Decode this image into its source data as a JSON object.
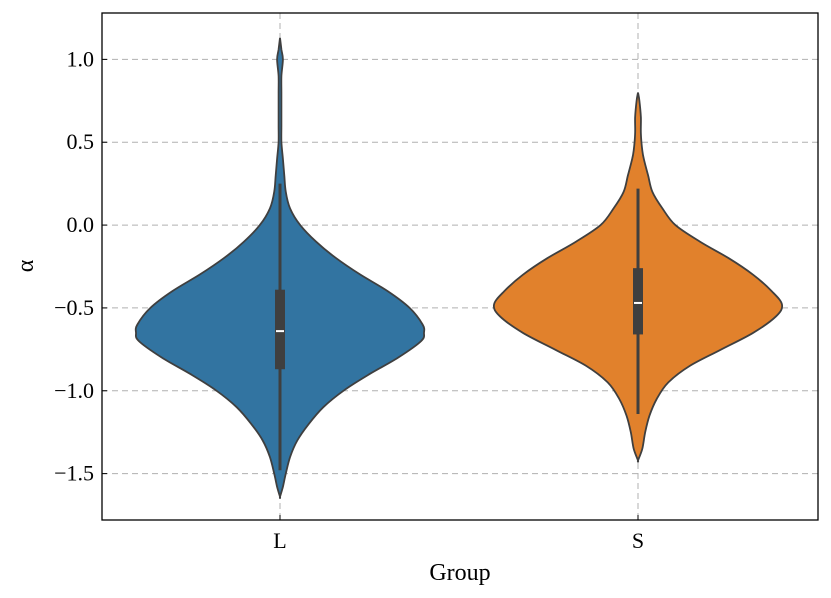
{
  "chart_data": {
    "type": "violin",
    "xlabel": "Group",
    "ylabel": "α",
    "categories": [
      "L",
      "S"
    ],
    "ylim": [
      -1.78,
      1.28
    ],
    "yticks": [
      1.0,
      0.5,
      0.0,
      -0.5,
      -1.0,
      -1.5
    ],
    "ytick_labels": [
      "1.0",
      "0.5",
      "0.0",
      "−0.5",
      "−1.0",
      "−1.5"
    ],
    "grid": true,
    "colors": {
      "L": "#3274a1",
      "S": "#e1812c",
      "outline": "#3f3f3f",
      "box": "#3f3f3f",
      "median": "#ffffff",
      "grid": "#b0b0b0"
    },
    "series": [
      {
        "category": "L",
        "min": -1.48,
        "q1": -0.87,
        "median": -0.64,
        "q3": -0.39,
        "max": 0.25,
        "density": [
          [
            1.13,
            0.0
          ],
          [
            1.06,
            0.01
          ],
          [
            1.0,
            0.02
          ],
          [
            0.9,
            0.01
          ],
          [
            0.8,
            0.01
          ],
          [
            0.7,
            0.01
          ],
          [
            0.6,
            0.01
          ],
          [
            0.5,
            0.01
          ],
          [
            0.4,
            0.02
          ],
          [
            0.3,
            0.03
          ],
          [
            0.2,
            0.04
          ],
          [
            0.1,
            0.07
          ],
          [
            0.0,
            0.14
          ],
          [
            -0.1,
            0.25
          ],
          [
            -0.2,
            0.39
          ],
          [
            -0.3,
            0.56
          ],
          [
            -0.4,
            0.75
          ],
          [
            -0.5,
            0.9
          ],
          [
            -0.6,
            0.99
          ],
          [
            -0.65,
            1.0
          ],
          [
            -0.7,
            0.98
          ],
          [
            -0.8,
            0.82
          ],
          [
            -0.9,
            0.62
          ],
          [
            -1.0,
            0.44
          ],
          [
            -1.1,
            0.3
          ],
          [
            -1.2,
            0.2
          ],
          [
            -1.3,
            0.12
          ],
          [
            -1.4,
            0.07
          ],
          [
            -1.5,
            0.04
          ],
          [
            -1.58,
            0.02
          ],
          [
            -1.64,
            0.0
          ]
        ]
      },
      {
        "category": "S",
        "min": -1.14,
        "q1": -0.66,
        "median": -0.47,
        "q3": -0.26,
        "max": 0.22,
        "density": [
          [
            0.8,
            0.0
          ],
          [
            0.75,
            0.01
          ],
          [
            0.65,
            0.02
          ],
          [
            0.55,
            0.02
          ],
          [
            0.45,
            0.03
          ],
          [
            0.4,
            0.04
          ],
          [
            0.3,
            0.07
          ],
          [
            0.2,
            0.1
          ],
          [
            0.1,
            0.17
          ],
          [
            0.0,
            0.26
          ],
          [
            -0.1,
            0.43
          ],
          [
            -0.2,
            0.63
          ],
          [
            -0.3,
            0.8
          ],
          [
            -0.4,
            0.93
          ],
          [
            -0.48,
            1.0
          ],
          [
            -0.55,
            0.96
          ],
          [
            -0.65,
            0.8
          ],
          [
            -0.75,
            0.58
          ],
          [
            -0.85,
            0.36
          ],
          [
            -0.95,
            0.21
          ],
          [
            -1.05,
            0.13
          ],
          [
            -1.15,
            0.08
          ],
          [
            -1.25,
            0.05
          ],
          [
            -1.35,
            0.03
          ],
          [
            -1.42,
            0.0
          ]
        ]
      }
    ]
  }
}
